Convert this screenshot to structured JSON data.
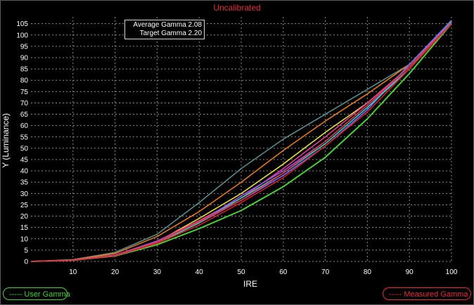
{
  "legend": {
    "user": "----- User Gamma",
    "measured": "-----  Measured Gamma"
  },
  "info": {
    "average": "Average Gamma 2.08",
    "target": "Target Gamma 2.20"
  },
  "colors": {
    "background": "#000000",
    "grid": "#8a8a8a",
    "axis_text": "#ffffff",
    "title": "#e0303a",
    "user_gamma": "#4ccd3a",
    "measured_gamma": "#e0303a"
  },
  "chart_data": {
    "type": "line",
    "title": "Uncalibrated",
    "xlabel": "IRE",
    "ylabel": "Y (Luminance)",
    "xlim": [
      0,
      100
    ],
    "ylim": [
      0,
      108
    ],
    "x_ticks": [
      "10",
      "20",
      "30",
      "40",
      "50",
      "60",
      "70",
      "80",
      "90",
      "100"
    ],
    "y_ticks": [
      "0",
      "5",
      "10",
      "15",
      "20",
      "25",
      "30",
      "35",
      "40",
      "45",
      "50",
      "55",
      "60",
      "65",
      "70",
      "75",
      "80",
      "85",
      "90",
      "95",
      "100",
      "105"
    ],
    "grid": true,
    "x": [
      0,
      10,
      20,
      30,
      40,
      50,
      60,
      70,
      80,
      90,
      100
    ],
    "series": [
      {
        "name": "User Gamma",
        "color": "#4ccd3a",
        "values": [
          0,
          0.5,
          2.4,
          7.4,
          14.5,
          22.5,
          33,
          46,
          63,
          83,
          105
        ]
      },
      {
        "color": "#5a8a8a",
        "values": [
          0,
          0.8,
          4.0,
          12.0,
          26.0,
          41.0,
          54.0,
          65.0,
          76.0,
          87.0,
          106.5
        ]
      },
      {
        "color": "#e07a20",
        "values": [
          0,
          0.7,
          3.5,
          11.0,
          22.0,
          35.0,
          49.0,
          62.0,
          74.0,
          87.0,
          106.0
        ]
      },
      {
        "color": "#e0e040",
        "values": [
          0,
          0.6,
          2.6,
          8.6,
          19.0,
          30.0,
          43.0,
          57.0,
          70.0,
          86.0,
          105.5
        ]
      },
      {
        "color": "#e04090",
        "values": [
          0,
          0.6,
          2.8,
          9.0,
          18.0,
          28.0,
          41.0,
          55.0,
          70.0,
          86.0,
          105.8
        ]
      },
      {
        "color": "#a050e0",
        "values": [
          0,
          0.5,
          2.7,
          9.0,
          17.0,
          29.0,
          40.0,
          53.0,
          69.0,
          85.0,
          106.0
        ]
      },
      {
        "color": "#7070ff",
        "values": [
          0,
          0.5,
          2.6,
          8.2,
          17.0,
          27.0,
          38.0,
          51.0,
          67.0,
          87.0,
          106.2
        ]
      },
      {
        "color": "#30d0c0",
        "values": [
          0,
          0.5,
          2.5,
          8.0,
          17.0,
          28.0,
          39.0,
          52.0,
          68.0,
          85.0,
          105.5
        ]
      },
      {
        "color": "#d02020",
        "values": [
          0,
          0.5,
          2.5,
          8.0,
          16.0,
          26.0,
          37.0,
          51.0,
          66.0,
          85.0,
          105.0
        ]
      },
      {
        "name": "Measured Gamma",
        "color": "#e0303a",
        "values": [
          0,
          0.5,
          2.6,
          8.5,
          17.5,
          27.0,
          39.0,
          53.0,
          69.0,
          86.0,
          105.2
        ]
      }
    ]
  }
}
